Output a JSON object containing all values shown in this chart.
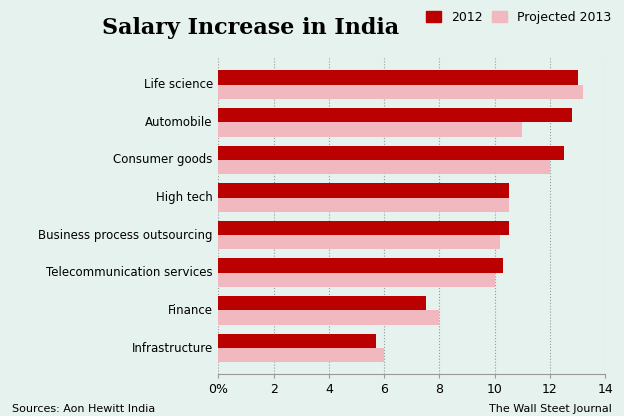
{
  "title": "Salary Increase in India",
  "categories": [
    "Infrastructure",
    "Finance",
    "Telecommunication services",
    "Business process outsourcing",
    "High tech",
    "Consumer goods",
    "Automobile",
    "Life science"
  ],
  "values_2012": [
    5.7,
    7.5,
    10.3,
    10.5,
    10.5,
    12.5,
    12.8,
    13.0
  ],
  "values_2013": [
    6.0,
    8.0,
    10.0,
    10.2,
    10.5,
    12.0,
    11.0,
    13.2
  ],
  "color_2012": "#bb0000",
  "color_2013": "#f2b8c0",
  "background_color": "#e6f2ee",
  "xlim": [
    0,
    14
  ],
  "xticks": [
    0,
    2,
    4,
    6,
    8,
    10,
    12,
    14
  ],
  "xtick_labels": [
    "0%",
    "2",
    "4",
    "6",
    "8",
    "10",
    "12",
    "14"
  ],
  "legend_2012": "2012",
  "legend_2013": "Projected 2013",
  "source_left": "Sources: Aon Hewitt India",
  "source_right": "The Wall Steet Journal",
  "title_fontsize": 16,
  "bar_height": 0.38
}
